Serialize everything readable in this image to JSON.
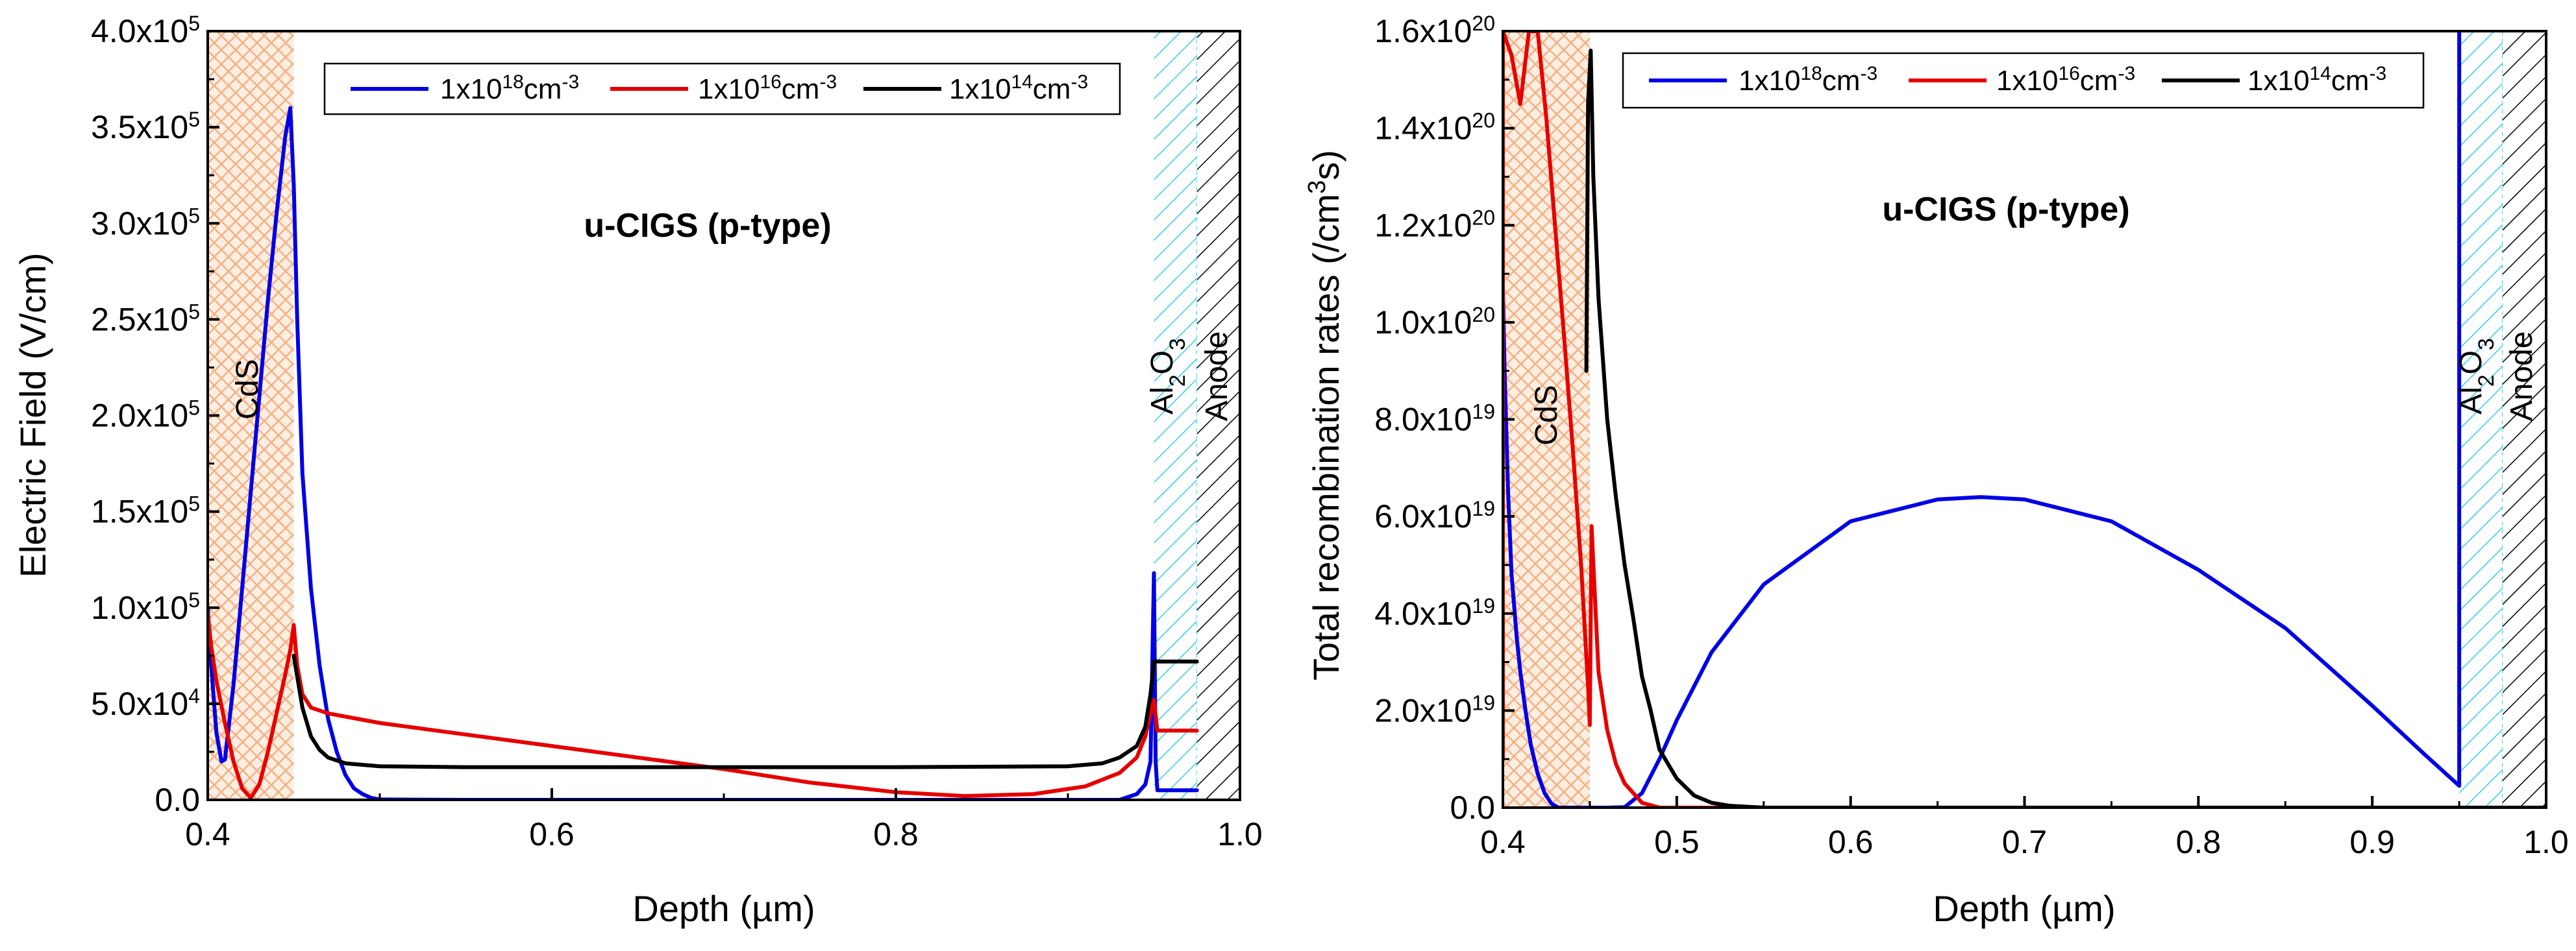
{
  "chart_data": [
    {
      "type": "line",
      "xlabel": "Depth (µm)",
      "ylabel": "Electric Field (V/cm)",
      "xlim": [
        0.4,
        1.0
      ],
      "ylim": [
        0,
        400000
      ],
      "xticks": [
        0.4,
        0.6,
        0.8,
        1.0
      ],
      "xtick_labels": [
        "0.4",
        "0.6",
        "0.8",
        "1.0"
      ],
      "yticks": [
        0,
        50000,
        100000,
        150000,
        200000,
        250000,
        300000,
        350000,
        400000
      ],
      "ytick_labels": [
        {
          "mant": "0.0",
          "exp": ""
        },
        {
          "mant": "5.0x10",
          "exp": "4"
        },
        {
          "mant": "1.0x10",
          "exp": "5"
        },
        {
          "mant": "1.5x10",
          "exp": "5"
        },
        {
          "mant": "2.0x10",
          "exp": "5"
        },
        {
          "mant": "2.5x10",
          "exp": "5"
        },
        {
          "mant": "3.0x10",
          "exp": "5"
        },
        {
          "mant": "3.5x10",
          "exp": "5"
        },
        {
          "mant": "4.0x10",
          "exp": "5"
        }
      ],
      "grid": false,
      "legend_position": "top",
      "annotation": "u-CIGS (p-type)",
      "annotation_color": "#1a1ad6",
      "regions": [
        {
          "label": "CdS",
          "x": [
            0.4,
            0.45
          ],
          "pattern": "crosshatch",
          "color": "#f4b183"
        },
        {
          "label_main": "Al",
          "label_sub1": "2",
          "label_mid": "O",
          "label_sub2": "3",
          "x": [
            0.95,
            0.975
          ],
          "pattern": "diagonal",
          "color": "#33ccee"
        },
        {
          "label": "Anode",
          "x": [
            0.975,
            1.0
          ],
          "pattern": "diagonal",
          "color": "#000000"
        }
      ],
      "series": [
        {
          "name_base": "1x10",
          "name_exp": "18",
          "name_unit": "cm",
          "name_unit_exp": "-3",
          "color": "#0000e6",
          "x": [
            0.4,
            0.402,
            0.405,
            0.408,
            0.41,
            0.415,
            0.42,
            0.425,
            0.43,
            0.435,
            0.44,
            0.445,
            0.448,
            0.45,
            0.452,
            0.455,
            0.46,
            0.465,
            0.47,
            0.475,
            0.48,
            0.485,
            0.49,
            0.495,
            0.5,
            0.55,
            0.6,
            0.7,
            0.8,
            0.9,
            0.93,
            0.94,
            0.945,
            0.948,
            0.95,
            0.951,
            0.952,
            0.975
          ],
          "y": [
            100000,
            70000,
            35000,
            20000,
            21000,
            60000,
            110000,
            160000,
            210000,
            260000,
            305000,
            345000,
            360000,
            320000,
            250000,
            170000,
            110000,
            70000,
            42000,
            25000,
            13000,
            6000,
            3000,
            1000,
            200,
            0,
            0,
            0,
            0,
            0,
            0,
            3000,
            8000,
            20000,
            118000,
            20000,
            5000,
            5000
          ]
        },
        {
          "name_base": "1x10",
          "name_exp": "16",
          "name_unit": "cm",
          "name_unit_exp": "-3",
          "color": "#e60000",
          "x": [
            0.4,
            0.402,
            0.405,
            0.41,
            0.415,
            0.42,
            0.425,
            0.43,
            0.435,
            0.44,
            0.445,
            0.448,
            0.45,
            0.452,
            0.455,
            0.46,
            0.47,
            0.5,
            0.55,
            0.6,
            0.65,
            0.7,
            0.75,
            0.8,
            0.84,
            0.88,
            0.91,
            0.93,
            0.94,
            0.945,
            0.948,
            0.95,
            0.952,
            0.975
          ],
          "y": [
            97000,
            80000,
            62000,
            40000,
            20000,
            6000,
            1000,
            8000,
            25000,
            45000,
            65000,
            78000,
            91000,
            70000,
            55000,
            48000,
            45000,
            40000,
            34000,
            28000,
            22000,
            16000,
            9000,
            4000,
            2000,
            3000,
            7000,
            14000,
            22000,
            33000,
            45000,
            52000,
            36000,
            36000
          ]
        },
        {
          "name_base": "1x10",
          "name_exp": "14",
          "name_unit": "cm",
          "name_unit_exp": "-3",
          "color": "#000000",
          "x": [
            0.45,
            0.455,
            0.46,
            0.465,
            0.47,
            0.48,
            0.5,
            0.55,
            0.6,
            0.7,
            0.8,
            0.9,
            0.92,
            0.93,
            0.94,
            0.945,
            0.948,
            0.95,
            0.952,
            0.975
          ],
          "y": [
            75000,
            48000,
            33000,
            26000,
            22000,
            19000,
            17500,
            17000,
            17000,
            17000,
            17000,
            17500,
            19000,
            22000,
            28000,
            38000,
            55000,
            72000,
            72000,
            72000
          ]
        }
      ]
    },
    {
      "type": "line",
      "xlabel": "Depth (µm)",
      "ylabel_main": "Total recombination rates (/cm",
      "ylabel_exp": "3",
      "ylabel_tail": "s)",
      "xlim": [
        0.4,
        1.0
      ],
      "ylim": [
        0,
        1.6e+20
      ],
      "xticks": [
        0.4,
        0.5,
        0.6,
        0.7,
        0.8,
        0.9,
        1.0
      ],
      "xtick_labels": [
        "0.4",
        "0.5",
        "0.6",
        "0.7",
        "0.8",
        "0.9",
        "1.0"
      ],
      "yticks": [
        0,
        2e+19,
        4e+19,
        6e+19,
        8e+19,
        1e+20,
        1.2e+20,
        1.4e+20,
        1.6e+20
      ],
      "ytick_labels": [
        {
          "mant": "0.0",
          "exp": ""
        },
        {
          "mant": "2.0x10",
          "exp": "19"
        },
        {
          "mant": "4.0x10",
          "exp": "19"
        },
        {
          "mant": "6.0x10",
          "exp": "19"
        },
        {
          "mant": "8.0x10",
          "exp": "19"
        },
        {
          "mant": "1.0x10",
          "exp": "20"
        },
        {
          "mant": "1.2x10",
          "exp": "20"
        },
        {
          "mant": "1.4x10",
          "exp": "20"
        },
        {
          "mant": "1.6x10",
          "exp": "20"
        }
      ],
      "grid": false,
      "legend_position": "top",
      "annotation": "u-CIGS (p-type)",
      "annotation_color": "#1a1ad6",
      "regions": [
        {
          "label": "CdS",
          "x": [
            0.4,
            0.45
          ],
          "pattern": "crosshatch",
          "color": "#f4b183"
        },
        {
          "label_main": "Al",
          "label_sub1": "2",
          "label_mid": "O",
          "label_sub2": "3",
          "x": [
            0.95,
            0.975
          ],
          "pattern": "diagonal",
          "color": "#33ccee"
        },
        {
          "label": "Anode",
          "x": [
            0.975,
            1.0
          ],
          "pattern": "diagonal",
          "color": "#000000"
        }
      ],
      "series": [
        {
          "name_base": "1x10",
          "name_exp": "18",
          "name_unit": "cm",
          "name_unit_exp": "-3",
          "color": "#0000e6",
          "segments": [
            {
              "x": [
                0.4,
                0.401,
                0.403,
                0.405,
                0.408,
                0.41,
                0.413,
                0.416,
                0.42,
                0.424,
                0.428,
                0.432,
                0.45
              ],
              "y": [
                1.07e+20,
                9e+19,
                6.5e+19,
                4.8e+19,
                3.5e+19,
                2.8e+19,
                2e+19,
                1.3e+19,
                7e+18,
                3e+18,
                8e+17,
                0,
                0
              ]
            },
            {
              "x": [
                0.45,
                0.46,
                0.47,
                0.48,
                0.49,
                0.5,
                0.52,
                0.55,
                0.6,
                0.65,
                0.675,
                0.7,
                0.75,
                0.8,
                0.85,
                0.9,
                0.93,
                0.95
              ],
              "y": [
                0,
                0,
                1e+17,
                3e+18,
                1e+19,
                1.8e+19,
                3.2e+19,
                4.6e+19,
                5.9e+19,
                6.35e+19,
                6.4e+19,
                6.35e+19,
                5.9e+19,
                4.9e+19,
                3.7e+19,
                2.1e+19,
                1.1e+19,
                4.5e+18
              ]
            },
            {
              "x": [
                0.95,
                0.95
              ],
              "y": [
                4.5e+18,
                1.6e+20
              ]
            }
          ]
        },
        {
          "name_base": "1x10",
          "name_exp": "16",
          "name_unit": "cm",
          "name_unit_exp": "-3",
          "color": "#e60000",
          "segments": [
            {
              "x": [
                0.4,
                0.4,
                0.405,
                0.41,
                0.415,
                0.42,
                0.425,
                0.43,
                0.435,
                0.44,
                0.445,
                0.449,
                0.45,
                0.451
              ],
              "y": [
                1e+19,
                1.6e+20,
                1.55e+20,
                1.45e+20,
                1.6e+20,
                1.6e+20,
                1.42e+20,
                1.2e+20,
                9.8e+19,
                7.5e+19,
                5e+19,
                2.5e+19,
                1.7e+19,
                5.8e+19
              ]
            },
            {
              "x": [
                0.451,
                0.455,
                0.46,
                0.465,
                0.47,
                0.48,
                0.49,
                1.0
              ],
              "y": [
                5.8e+19,
                2.8e+19,
                1.6e+19,
                9e+18,
                5e+18,
                1e+18,
                0,
                0
              ]
            }
          ]
        },
        {
          "name_base": "1x10",
          "name_exp": "14",
          "name_unit": "cm",
          "name_unit_exp": "-3",
          "color": "#000000",
          "segments": [
            {
              "x": [
                0.448,
                0.449,
                0.4505,
                0.452,
                0.455,
                0.46,
                0.465,
                0.47,
                0.475,
                0.48,
                0.485,
                0.49,
                0.5,
                0.51,
                0.52,
                0.53,
                0.55,
                0.6,
                1.0
              ],
              "y": [
                9e+19,
                1.45e+20,
                1.56e+20,
                1.3e+20,
                1.05e+20,
                8e+19,
                6.4e+19,
                5e+19,
                3.9e+19,
                2.7e+19,
                2e+19,
                1.2e+19,
                6e+18,
                2.5e+18,
                1e+18,
                4e+17,
                0,
                0,
                0
              ]
            }
          ]
        }
      ]
    }
  ]
}
